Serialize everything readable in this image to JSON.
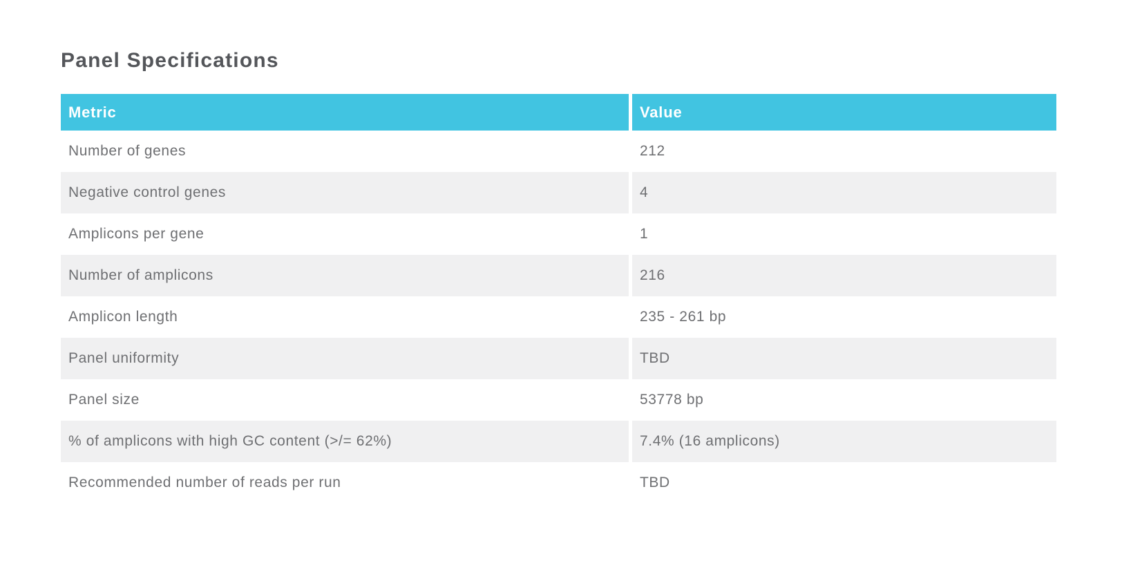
{
  "page": {
    "title": "Panel Specifications"
  },
  "table": {
    "columns": [
      {
        "label": "Metric"
      },
      {
        "label": "Value"
      }
    ],
    "rows": [
      {
        "metric": "Number of genes",
        "value": "212"
      },
      {
        "metric": "Negative control genes",
        "value": "4"
      },
      {
        "metric": "Amplicons per gene",
        "value": "1"
      },
      {
        "metric": "Number of amplicons",
        "value": "216"
      },
      {
        "metric": "Amplicon length",
        "value": "235 - 261 bp"
      },
      {
        "metric": "Panel uniformity",
        "value": "TBD"
      },
      {
        "metric": "Panel size",
        "value": "53778 bp"
      },
      {
        "metric": "% of amplicons with high GC content (>/= 62%)",
        "value": "7.4% (16 amplicons)"
      },
      {
        "metric": "Recommended number of reads per run",
        "value": "TBD"
      }
    ],
    "colors": {
      "header_bg": "#41c4e1",
      "header_text": "#ffffff",
      "row_alt_bg": "#f0f0f1",
      "body_text": "#6e6f72",
      "title_text": "#54565a"
    }
  }
}
